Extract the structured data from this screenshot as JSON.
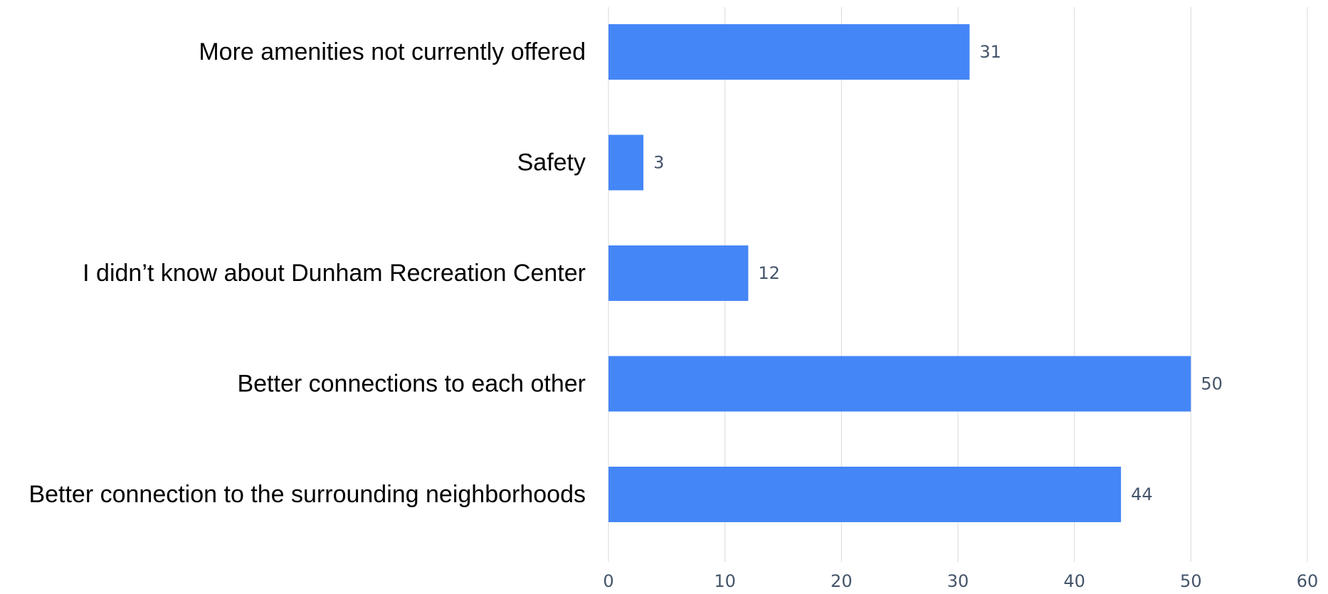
{
  "chart_data": {
    "type": "bar",
    "orientation": "horizontal",
    "categories": [
      "More amenities not currently offered",
      "Safety",
      "I didn’t know about Dunham Recreation Center",
      "Better connections to each other",
      "Better connection to the surrounding neighborhoods"
    ],
    "values": [
      31,
      3,
      12,
      50,
      44
    ],
    "xlim": [
      0,
      60
    ],
    "xticks": [
      0,
      10,
      20,
      30,
      40,
      50,
      60
    ],
    "grid": true,
    "bar_color": "#4586f7",
    "label_color": "#44546a",
    "title": "",
    "xlabel": "",
    "ylabel": ""
  }
}
